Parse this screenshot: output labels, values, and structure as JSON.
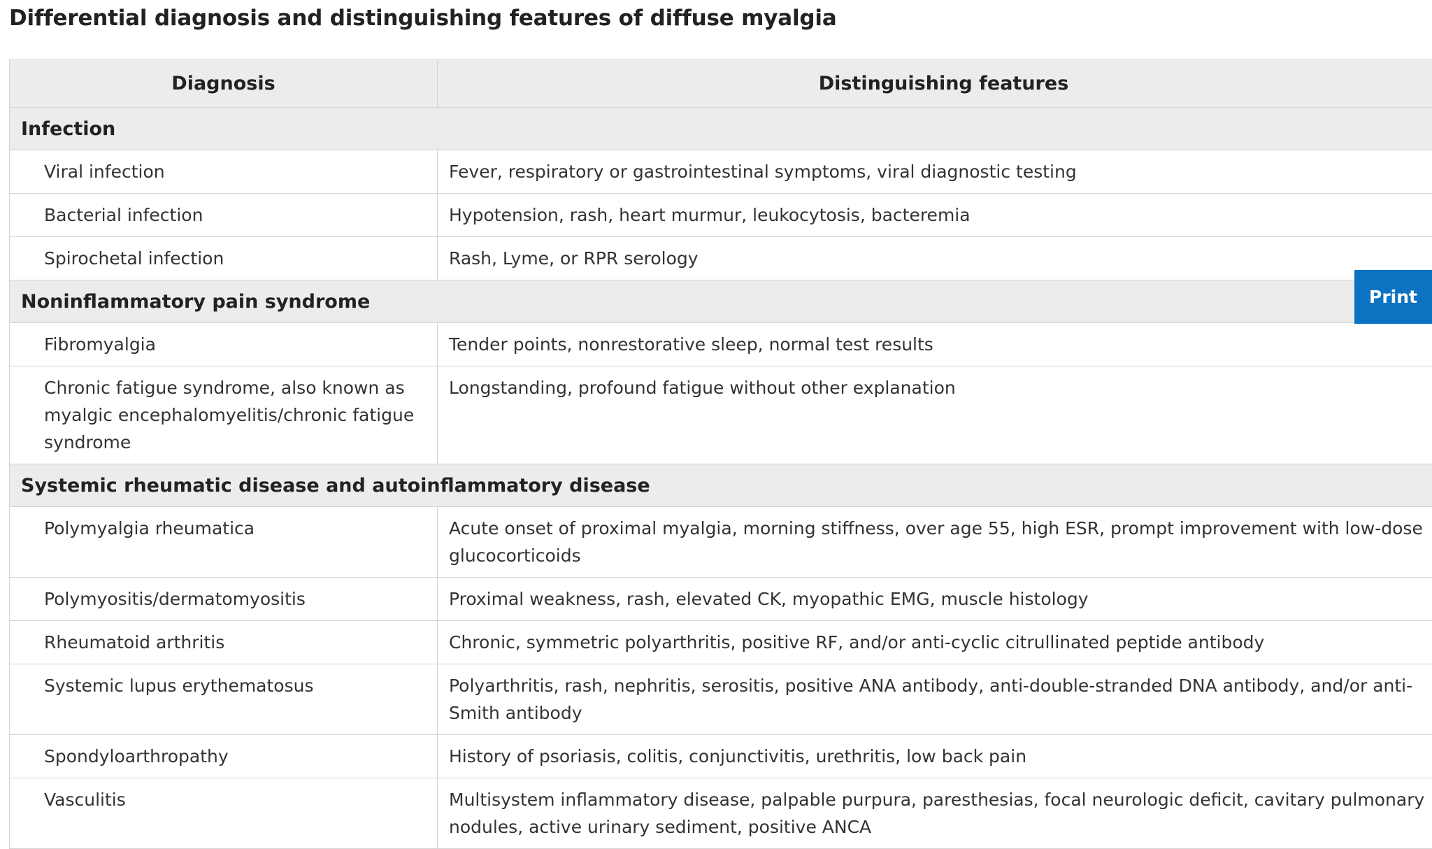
{
  "title": "Differential diagnosis and distinguishing features of diffuse myalgia",
  "print_label": "Print",
  "table": {
    "headers": [
      "Diagnosis",
      "Distinguishing features"
    ],
    "sections": [
      {
        "name": "Infection",
        "rows": [
          {
            "diagnosis": "Viral infection",
            "features": "Fever, respiratory or gastrointestinal symptoms, viral diagnostic testing"
          },
          {
            "diagnosis": "Bacterial infection",
            "features": "Hypotension, rash, heart murmur, leukocytosis, bacteremia"
          },
          {
            "diagnosis": "Spirochetal infection",
            "features": "Rash, Lyme, or RPR serology"
          }
        ]
      },
      {
        "name": "Noninflammatory pain syndrome",
        "rows": [
          {
            "diagnosis": "Fibromyalgia",
            "features": "Tender points, nonrestorative sleep, normal test results"
          },
          {
            "diagnosis": "Chronic fatigue syndrome, also known as myalgic encephalomyelitis/chronic fatigue syndrome",
            "features": "Longstanding, profound fatigue without other explanation"
          }
        ]
      },
      {
        "name": "Systemic rheumatic disease and autoinflammatory disease",
        "rows": [
          {
            "diagnosis": "Polymyalgia rheumatica",
            "features": "Acute onset of proximal myalgia, morning stiffness, over age 55, high ESR, prompt improvement with low-dose glucocorticoids"
          },
          {
            "diagnosis": "Polymyositis/dermatomyositis",
            "features": "Proximal weakness, rash, elevated CK, myopathic EMG, muscle histology"
          },
          {
            "diagnosis": "Rheumatoid arthritis",
            "features": "Chronic, symmetric polyarthritis, positive RF, and/or anti-cyclic citrullinated peptide antibody"
          },
          {
            "diagnosis": "Systemic lupus erythematosus",
            "features": "Polyarthritis, rash, nephritis, serositis, positive ANA antibody, anti-double-stranded DNA antibody, and/or anti-Smith antibody"
          },
          {
            "diagnosis": "Spondyloarthropathy",
            "features": "History of psoriasis, colitis, conjunctivitis, urethritis, low back pain"
          },
          {
            "diagnosis": "Vasculitis",
            "features": "Multisystem inflammatory disease, palpable purpura, paresthesias, focal neurologic deficit, cavitary pulmonary nodules, active urinary sediment, positive ANCA"
          }
        ]
      }
    ]
  }
}
